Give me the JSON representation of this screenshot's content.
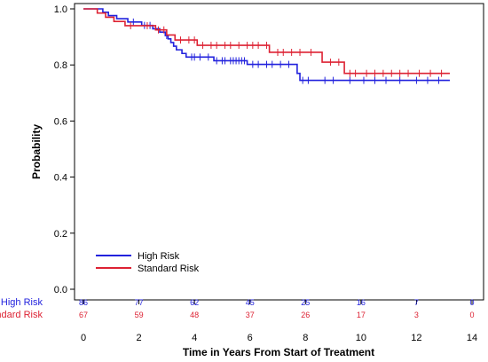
{
  "chart_data": {
    "type": "line",
    "subtype": "kaplan-meier",
    "xlabel": "Time in Years From Start of Treatment",
    "ylabel": "Probability",
    "xlim": [
      0,
      14
    ],
    "ylim": [
      0,
      1
    ],
    "x_ticks": [
      "0",
      "2",
      "4",
      "6",
      "8",
      "10",
      "12",
      "14"
    ],
    "y_ticks": [
      "0.0",
      "0.2",
      "0.4",
      "0.6",
      "0.8",
      "1.0"
    ],
    "legend_position": "bottom-left",
    "series": [
      {
        "name": "High Risk",
        "color": "#2222dd",
        "steps": [
          [
            0,
            1.0
          ],
          [
            0.7,
            0.988
          ],
          [
            0.9,
            0.976
          ],
          [
            1.2,
            0.965
          ],
          [
            1.6,
            0.953
          ],
          [
            2.1,
            0.941
          ],
          [
            2.5,
            0.929
          ],
          [
            2.75,
            0.917
          ],
          [
            2.95,
            0.905
          ],
          [
            3.05,
            0.893
          ],
          [
            3.15,
            0.88
          ],
          [
            3.25,
            0.867
          ],
          [
            3.35,
            0.854
          ],
          [
            3.55,
            0.841
          ],
          [
            3.7,
            0.828
          ],
          [
            4.7,
            0.815
          ],
          [
            5.9,
            0.802
          ],
          [
            7.7,
            0.77
          ],
          [
            7.8,
            0.745
          ],
          [
            13.2,
            0.745
          ]
        ],
        "censor_times": [
          1.8,
          2.2,
          2.4,
          3.0,
          3.9,
          4.0,
          4.2,
          4.5,
          4.8,
          5.0,
          5.1,
          5.3,
          5.4,
          5.5,
          5.6,
          5.7,
          5.8,
          6.1,
          6.3,
          6.6,
          6.8,
          7.1,
          7.4,
          7.9,
          8.1,
          8.7,
          9.0,
          9.6,
          10.1,
          10.5,
          10.9,
          11.4,
          12.0,
          12.4,
          12.8
        ]
      },
      {
        "name": "Standard Risk",
        "color": "#dd2233",
        "steps": [
          [
            0,
            1.0
          ],
          [
            0.5,
            0.985
          ],
          [
            0.8,
            0.97
          ],
          [
            1.1,
            0.955
          ],
          [
            1.5,
            0.94
          ],
          [
            2.6,
            0.925
          ],
          [
            3.0,
            0.907
          ],
          [
            3.3,
            0.889
          ],
          [
            4.1,
            0.87
          ],
          [
            6.5,
            0.87
          ],
          [
            6.7,
            0.845
          ],
          [
            8.6,
            0.81
          ],
          [
            9.4,
            0.77
          ],
          [
            13.2,
            0.77
          ]
        ],
        "censor_times": [
          1.7,
          2.3,
          2.7,
          2.9,
          3.5,
          3.8,
          4.0,
          4.3,
          4.6,
          4.8,
          5.1,
          5.3,
          5.6,
          5.9,
          6.1,
          6.3,
          6.6,
          7.0,
          7.2,
          7.5,
          7.8,
          8.2,
          8.9,
          9.2,
          9.6,
          9.8,
          10.2,
          10.5,
          10.8,
          11.1,
          11.4,
          11.7,
          12.1,
          12.5,
          12.9
        ]
      }
    ],
    "risk_table": {
      "times": [
        "0",
        "2",
        "4",
        "6",
        "8",
        "10",
        "12",
        "14"
      ],
      "rows": [
        {
          "label": "High Risk",
          "color": "#2222dd",
          "counts": [
            "86",
            "77",
            "62",
            "45",
            "25",
            "16",
            "7",
            "0"
          ]
        },
        {
          "label": "Standard Risk",
          "color": "#dd2233",
          "counts": [
            "67",
            "59",
            "48",
            "37",
            "26",
            "17",
            "3",
            "0"
          ]
        }
      ]
    }
  }
}
